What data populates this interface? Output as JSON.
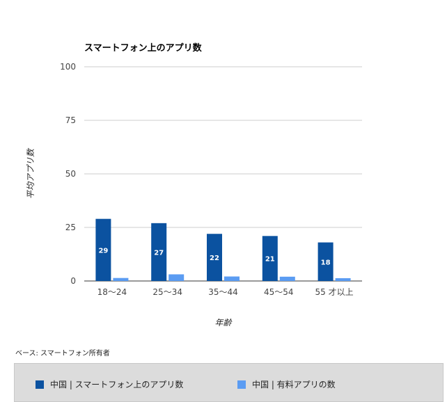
{
  "chart_data": {
    "type": "bar",
    "title": "スマートフォン上のアプリ数",
    "ylabel": "平均アプリ数",
    "xlabel": "年齢",
    "categories": [
      "18〜24",
      "25〜34",
      "35〜44",
      "45〜54",
      "55 才以上"
    ],
    "series": [
      {
        "name": "中国 | スマートフォン上のアプリ数",
        "color": "#0b52a0",
        "values": [
          29,
          27,
          22,
          21,
          18
        ],
        "labels": [
          "29",
          "27",
          "22",
          "21",
          "18"
        ]
      },
      {
        "name": "中国 | 有料アプリの数",
        "color": "#5b9cf2",
        "values": [
          1.4,
          3.1,
          2.1,
          2.0,
          1.3
        ]
      }
    ],
    "ylim": [
      0,
      100
    ],
    "yticks": [
      0,
      25,
      50,
      75,
      100
    ],
    "grid": true,
    "legend_position": "bottom"
  },
  "note": "ベース: スマートフォン所有者"
}
